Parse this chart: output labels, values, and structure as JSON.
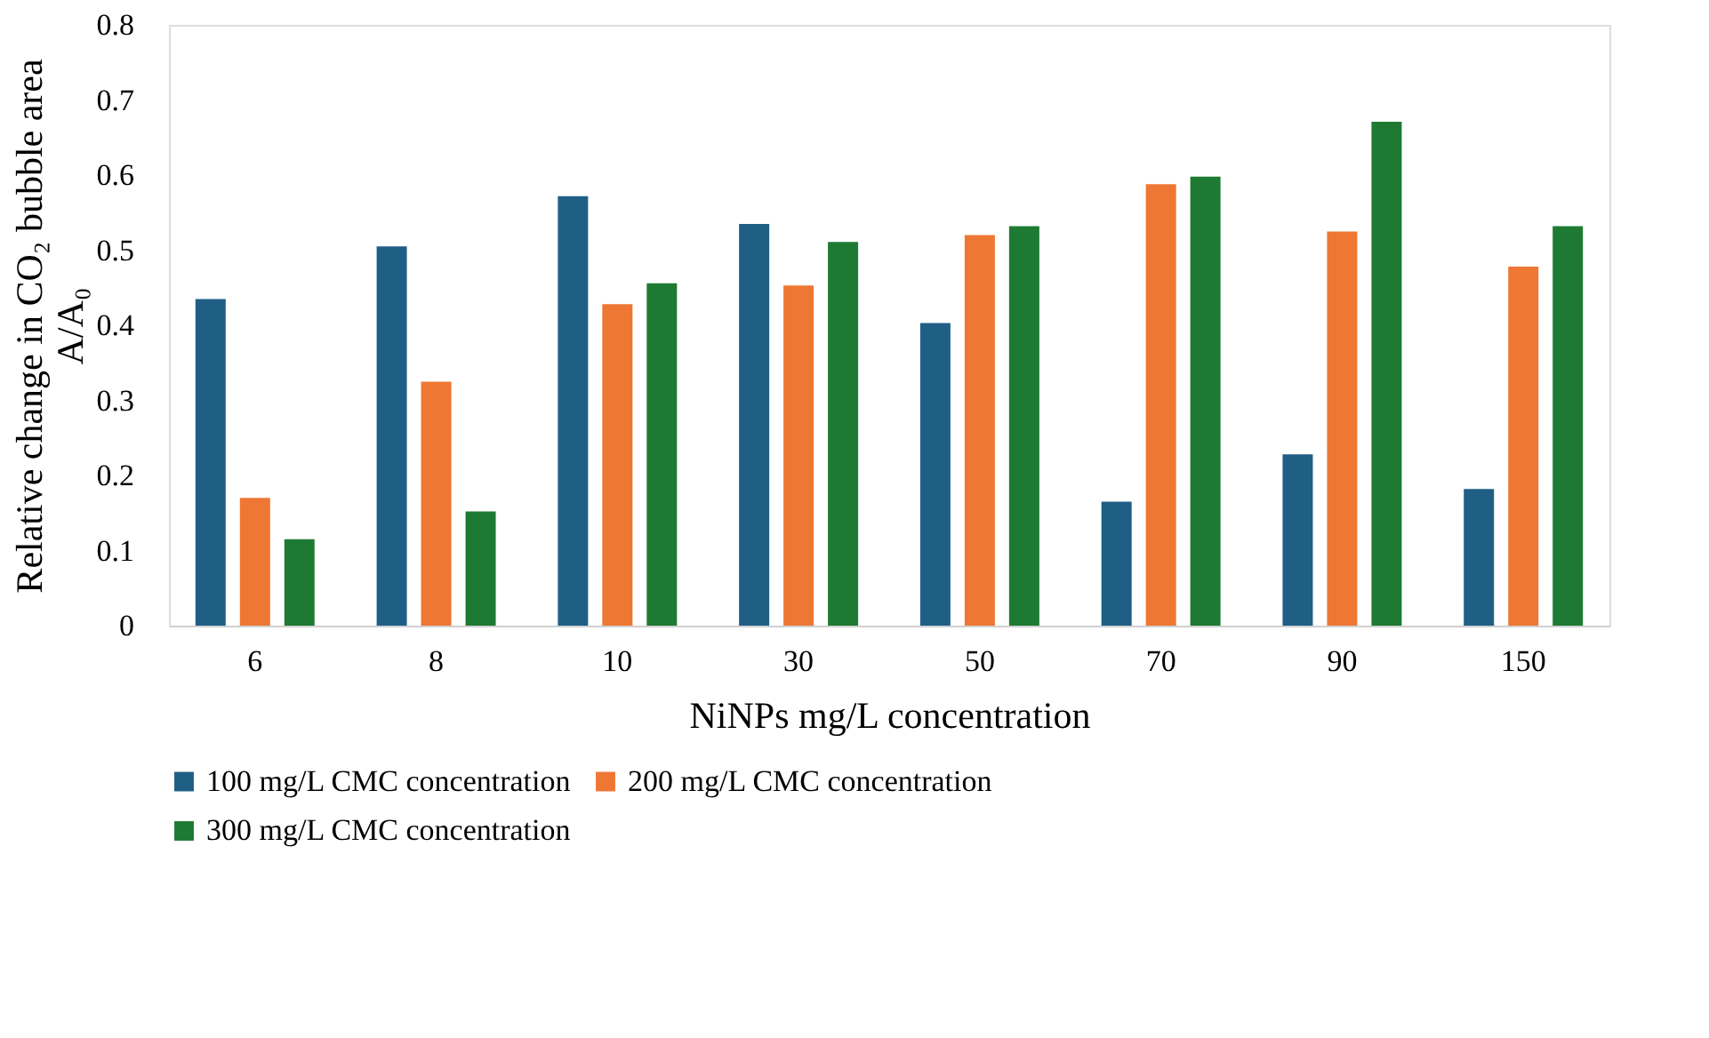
{
  "chart_data": {
    "type": "bar",
    "xlabel": "NiNPs mg/L concentration",
    "ylabel": "Relative  change in CO₂ bubble area A/A₀",
    "categories": [
      "6",
      "8",
      "10",
      "30",
      "50",
      "70",
      "90",
      "150"
    ],
    "series": [
      {
        "name": "100 mg/L CMC concentration",
        "color": "#1f5f85",
        "values": [
          0.435,
          0.505,
          0.572,
          0.535,
          0.403,
          0.165,
          0.228,
          0.182
        ]
      },
      {
        "name": "200 mg/L CMC concentration",
        "color": "#ee7733",
        "values": [
          0.17,
          0.325,
          0.428,
          0.453,
          0.52,
          0.588,
          0.525,
          0.478
        ]
      },
      {
        "name": "300 mg/L CMC concentration",
        "color": "#1e7a32",
        "values": [
          0.115,
          0.152,
          0.456,
          0.511,
          0.532,
          0.598,
          0.671,
          0.532
        ]
      }
    ],
    "ylim": [
      0,
      0.8
    ],
    "yticks": [
      0,
      0.1,
      0.2,
      0.3,
      0.4,
      0.5,
      0.6,
      0.7,
      0.8
    ],
    "grid": false,
    "legend": "bottom"
  }
}
